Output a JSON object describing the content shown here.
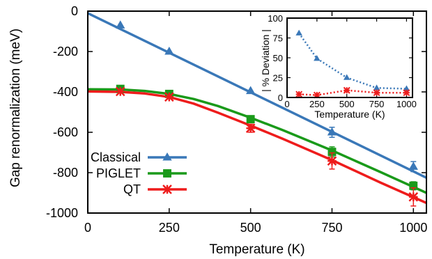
{
  "chart_data": [
    {
      "type": "line",
      "title": "",
      "xlabel": "Temperature (K)",
      "ylabel": "Gap renormalization (meV)",
      "xlim": [
        0,
        1040
      ],
      "ylim": [
        -1000,
        0
      ],
      "xticks": [
        0,
        250,
        500,
        750,
        1000
      ],
      "yticks": [
        0,
        -200,
        -400,
        -600,
        -800,
        -1000
      ],
      "xtick_labels": [
        "0",
        "250",
        "500",
        "750",
        "1000"
      ],
      "ytick_labels": [
        "0",
        "-200",
        "-400",
        "-600",
        "-800",
        "-1000"
      ],
      "grid": false,
      "legend_placement": "center-left",
      "series": [
        {
          "name": "Classical",
          "color": "#3a78b8",
          "marker": "triangle",
          "points": [
            {
              "x": 100,
              "y": -70
            },
            {
              "x": 250,
              "y": -200
            },
            {
              "x": 500,
              "y": -395
            },
            {
              "x": 750,
              "y": -600,
              "err": 25
            },
            {
              "x": 1000,
              "y": -770,
              "err": 25
            }
          ],
          "fit_line": [
            [
              0,
              -10
            ],
            [
              1040,
              -825
            ]
          ]
        },
        {
          "name": "PIGLET",
          "color": "#1a9a1a",
          "marker": "square",
          "points": [
            {
              "x": 100,
              "y": -385
            },
            {
              "x": 250,
              "y": -410
            },
            {
              "x": 500,
              "y": -535
            },
            {
              "x": 750,
              "y": -697,
              "err": 25
            },
            {
              "x": 1000,
              "y": -865,
              "err": 20
            }
          ],
          "fit_curve": [
            [
              0,
              -387
            ],
            [
              100,
              -388
            ],
            [
              175,
              -395
            ],
            [
              250,
              -410
            ],
            [
              325,
              -435
            ],
            [
              400,
              -470
            ],
            [
              500,
              -528
            ],
            [
              600,
              -590
            ],
            [
              750,
              -690
            ],
            [
              900,
              -798
            ],
            [
              1040,
              -900
            ]
          ]
        },
        {
          "name": "QT",
          "color": "#ee1c1c",
          "marker": "star",
          "points": [
            {
              "x": 100,
              "y": -398
            },
            {
              "x": 250,
              "y": -425
            },
            {
              "x": 500,
              "y": -580,
              "err": 20
            },
            {
              "x": 750,
              "y": -742,
              "err": 40
            },
            {
              "x": 1000,
              "y": -920,
              "err": 45
            }
          ],
          "fit_curve": [
            [
              0,
              -398
            ],
            [
              100,
              -400
            ],
            [
              175,
              -408
            ],
            [
              250,
              -425
            ],
            [
              325,
              -458
            ],
            [
              400,
              -503
            ],
            [
              500,
              -567
            ],
            [
              600,
              -633
            ],
            [
              750,
              -738
            ],
            [
              900,
              -850
            ],
            [
              1040,
              -950
            ]
          ]
        }
      ]
    },
    {
      "type": "line",
      "title": "",
      "xlabel": "Temperature (K)",
      "ylabel": "| % Deviation |",
      "xlim": [
        0,
        1050
      ],
      "ylim": [
        0,
        100
      ],
      "xticks": [
        0,
        250,
        500,
        750,
        1000
      ],
      "yticks": [
        0,
        25,
        50,
        75,
        100
      ],
      "xtick_labels": [
        "0",
        "250",
        "500",
        "750",
        "1000"
      ],
      "ytick_labels": [
        "0",
        "25",
        "50",
        "75",
        "100"
      ],
      "grid": false,
      "series": [
        {
          "color": "#3a78b8",
          "marker": "triangle",
          "line_style": "dotted",
          "points": [
            {
              "x": 100,
              "y": 81
            },
            {
              "x": 250,
              "y": 49
            },
            {
              "x": 500,
              "y": 25
            },
            {
              "x": 750,
              "y": 12
            },
            {
              "x": 1000,
              "y": 11
            }
          ]
        },
        {
          "color": "#ee1c1c",
          "marker": "star",
          "line_style": "dotted",
          "points": [
            {
              "x": 100,
              "y": 4
            },
            {
              "x": 250,
              "y": 3
            },
            {
              "x": 500,
              "y": 9
            },
            {
              "x": 750,
              "y": 6
            },
            {
              "x": 1000,
              "y": 6
            }
          ]
        }
      ]
    }
  ]
}
